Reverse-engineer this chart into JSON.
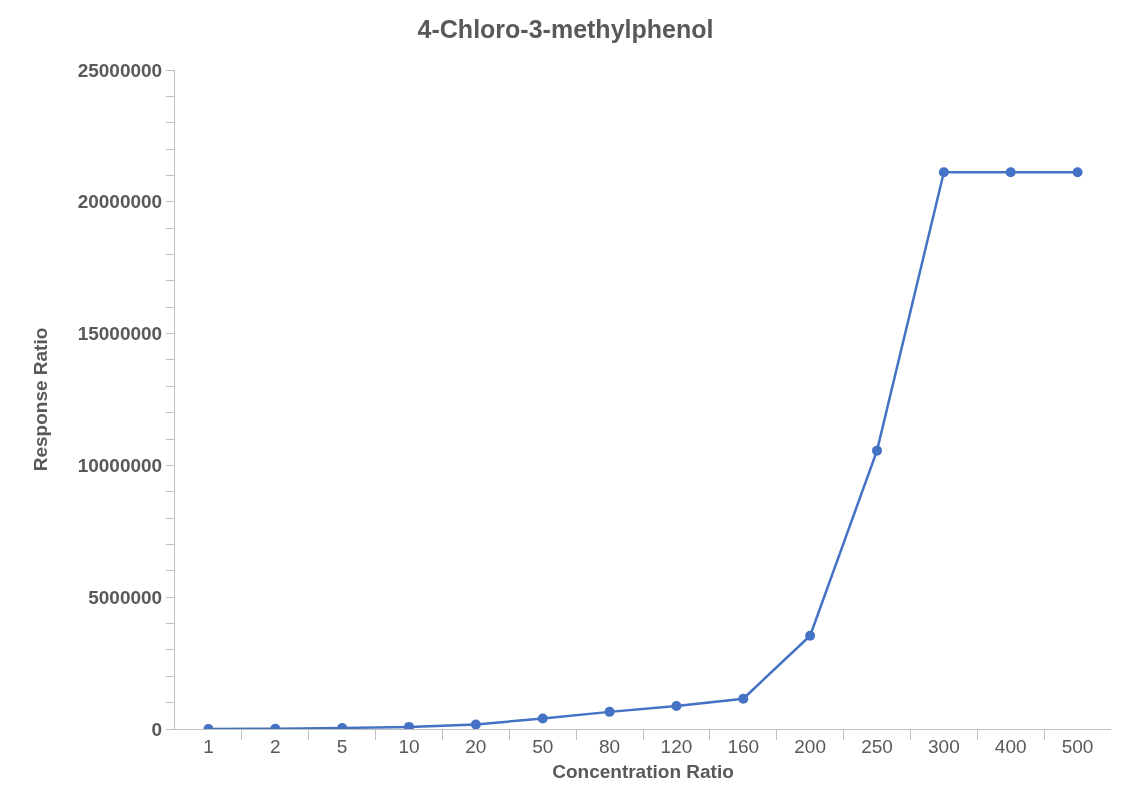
{
  "chart_data": {
    "type": "line",
    "title": "4-Chloro-3-methylphenol",
    "xlabel": "Concentration Ratio",
    "ylabel": "Response Ratio",
    "categories": [
      "1",
      "2",
      "5",
      "10",
      "20",
      "50",
      "80",
      "120",
      "160",
      "200",
      "250",
      "300",
      "400",
      "500"
    ],
    "series": [
      {
        "color": "#4472c4",
        "values": [
          0,
          10000,
          40000,
          80000,
          170000,
          400000,
          650000,
          870000,
          1150000,
          3540000,
          10560000,
          21120000,
          21120000,
          21120000
        ]
      }
    ],
    "ylim": [
      0,
      25000000
    ],
    "yticks": [
      0,
      {
        "value": 1000000,
        "label": null
      },
      {
        "value": 2000000,
        "label": null
      },
      {
        "value": 3000000,
        "label": null
      },
      {
        "value": 4000000,
        "label": null
      },
      5000000,
      {
        "value": 6000000,
        "label": null
      },
      {
        "value": 7000000,
        "label": null
      },
      {
        "value": 8000000,
        "label": null
      },
      {
        "value": 9000000,
        "label": null
      },
      10000000,
      {
        "value": 11000000,
        "label": null
      },
      {
        "value": 12000000,
        "label": null
      },
      {
        "value": 13000000,
        "label": null
      },
      {
        "value": 14000000,
        "label": null
      },
      15000000,
      {
        "value": 16000000,
        "label": null
      },
      {
        "value": 17000000,
        "label": null
      },
      {
        "value": 18000000,
        "label": null
      },
      {
        "value": 19000000,
        "label": null
      },
      20000000,
      {
        "value": 21000000,
        "label": null
      },
      {
        "value": 22000000,
        "label": null
      },
      {
        "value": 23000000,
        "label": null
      },
      {
        "value": 24000000,
        "label": null
      },
      25000000
    ],
    "marker": "circle",
    "line_style": "solid"
  }
}
